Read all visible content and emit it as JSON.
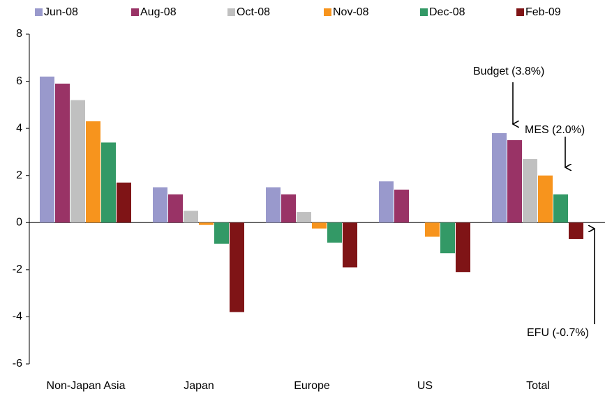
{
  "chart_data": {
    "type": "bar",
    "categories": [
      "Non-Japan Asia",
      "Japan",
      "Europe",
      "US",
      "Total"
    ],
    "series": [
      {
        "name": "Jun-08",
        "color": "#9999cc",
        "values": [
          6.2,
          1.5,
          1.5,
          1.75,
          3.8
        ]
      },
      {
        "name": "Aug-08",
        "color": "#993366",
        "values": [
          5.9,
          1.2,
          1.2,
          1.4,
          3.5
        ]
      },
      {
        "name": "Oct-08",
        "color": "#c0c0c0",
        "values": [
          5.2,
          0.5,
          0.45,
          0,
          2.7
        ]
      },
      {
        "name": "Nov-08",
        "color": "#f7941d",
        "values": [
          4.3,
          -0.1,
          -0.25,
          -0.6,
          2.0
        ]
      },
      {
        "name": "Dec-08",
        "color": "#339966",
        "values": [
          3.4,
          -0.9,
          -0.85,
          -1.3,
          1.2
        ]
      },
      {
        "name": "Feb-09",
        "color": "#7f1416",
        "values": [
          1.7,
          -3.8,
          -1.9,
          -2.1,
          -0.7
        ]
      }
    ],
    "ylim": [
      -6,
      8
    ],
    "yticks": [
      -6,
      -4,
      -2,
      0,
      2,
      4,
      6,
      8
    ],
    "legend": "top",
    "annotations": [
      {
        "text": "Budget (3.8%)"
      },
      {
        "text": "MES (2.0%)"
      },
      {
        "text": "EFU (-0.7%)"
      }
    ]
  }
}
